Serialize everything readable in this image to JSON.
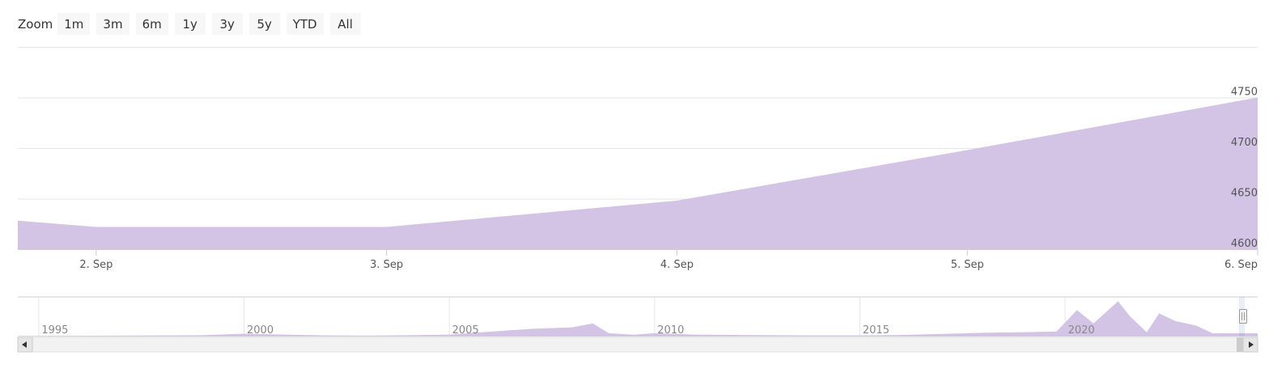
{
  "zoom": {
    "label": "Zoom",
    "buttons": [
      "1m",
      "3m",
      "6m",
      "1y",
      "3y",
      "5y",
      "YTD",
      "All"
    ]
  },
  "colors": {
    "area": "#d3c4e6",
    "grid": "#e6e6e6",
    "axis": "#cccccc"
  },
  "chart_data": {
    "type": "area",
    "x": [
      "2023-09-01",
      "2023-09-02",
      "2023-09-03",
      "2023-09-04",
      "2023-09-05",
      "2023-09-06"
    ],
    "values": [
      4645,
      4622,
      4622,
      4648,
      4698,
      4750
    ],
    "xticks": [
      "2. Sep",
      "3. Sep",
      "4. Sep",
      "5. Sep",
      "6. Sep"
    ],
    "yticks": [
      4600,
      4650,
      4700,
      4750
    ],
    "ylim": [
      4600,
      4800
    ],
    "yaxis_side": "right",
    "grid": true,
    "navigator": {
      "labels": [
        "1995",
        "2000",
        "2005",
        "2010",
        "2015",
        "2020"
      ],
      "years": [
        1995,
        2000,
        2005,
        2010,
        2015,
        2020
      ],
      "x_range": [
        1994.5,
        2024.7
      ],
      "series": [
        [
          1994.5,
          300
        ],
        [
          1997,
          400
        ],
        [
          1999,
          600
        ],
        [
          2000,
          1300
        ],
        [
          2001,
          900
        ],
        [
          2002,
          500
        ],
        [
          2003,
          400
        ],
        [
          2004,
          600
        ],
        [
          2005,
          900
        ],
        [
          2006,
          2200
        ],
        [
          2007,
          3500
        ],
        [
          2008,
          4200
        ],
        [
          2008.5,
          6000
        ],
        [
          2008.9,
          1500
        ],
        [
          2009.5,
          800
        ],
        [
          2010,
          1500
        ],
        [
          2011,
          900
        ],
        [
          2012,
          700
        ],
        [
          2013,
          600
        ],
        [
          2014,
          500
        ],
        [
          2015,
          500
        ],
        [
          2016,
          700
        ],
        [
          2017,
          1200
        ],
        [
          2018,
          1700
        ],
        [
          2019,
          2000
        ],
        [
          2019.8,
          2300
        ],
        [
          2020.3,
          12000
        ],
        [
          2020.7,
          6000
        ],
        [
          2021,
          11000
        ],
        [
          2021.3,
          16000
        ],
        [
          2021.6,
          9000
        ],
        [
          2022,
          2000
        ],
        [
          2022.3,
          10500
        ],
        [
          2022.7,
          7000
        ],
        [
          2023.2,
          5000
        ],
        [
          2023.6,
          1500
        ],
        [
          2024.7,
          1500
        ]
      ],
      "ymax": 18000
    }
  }
}
